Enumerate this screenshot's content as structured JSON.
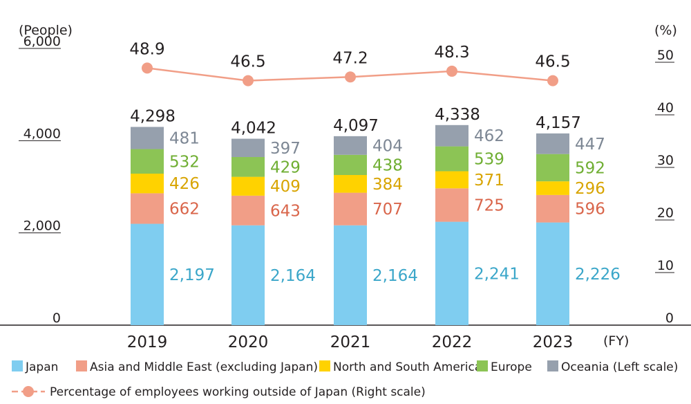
{
  "chart_data": {
    "type": "bar",
    "stacked": true,
    "categories": [
      "2019",
      "2020",
      "2021",
      "2022",
      "2023"
    ],
    "x_unit": "(FY)",
    "y_left": {
      "unit": "(People)",
      "ticks": [
        "0",
        "2,000",
        "4,000",
        "6,000"
      ],
      "range": [
        0,
        6000
      ]
    },
    "y_right": {
      "unit": "(%)",
      "ticks": [
        "0",
        "10",
        "20",
        "30",
        "40",
        "50"
      ],
      "range": [
        0,
        50
      ]
    },
    "series": [
      {
        "name": "Japan",
        "color": "#7fcdf0",
        "label_color": "#3aa6c9",
        "values": [
          2197,
          2164,
          2164,
          2241,
          2226
        ],
        "labels": [
          "2,197",
          "2,164",
          "2,164",
          "2,241",
          "2,226"
        ]
      },
      {
        "name": "Asia and Middle East (excluding Japan)",
        "color": "#f19e87",
        "label_color": "#d9654a",
        "values": [
          662,
          643,
          707,
          725,
          596
        ],
        "labels": [
          "662",
          "643",
          "707",
          "725",
          "596"
        ]
      },
      {
        "name": "North and South America",
        "color": "#ffd200",
        "label_color": "#d8a400",
        "values": [
          426,
          409,
          384,
          371,
          296
        ],
        "labels": [
          "426",
          "409",
          "384",
          "371",
          "296"
        ]
      },
      {
        "name": "Europe",
        "color": "#8cc455",
        "label_color": "#6fae32",
        "values": [
          532,
          429,
          438,
          539,
          592
        ],
        "labels": [
          "532",
          "429",
          "438",
          "539",
          "592"
        ]
      },
      {
        "name": "Oceania (Left scale)",
        "color": "#96a0ad",
        "label_color": "#7d8794",
        "values": [
          481,
          397,
          404,
          462,
          447
        ],
        "labels": [
          "481",
          "397",
          "404",
          "462",
          "447"
        ]
      }
    ],
    "totals": [
      "4,298",
      "4,042",
      "4,097",
      "4,338",
      "4,157"
    ],
    "line": {
      "name": "Percentage of employees working outside of Japan (Right scale)",
      "color": "#f19e87",
      "values": [
        48.9,
        46.5,
        47.2,
        48.3,
        46.5
      ],
      "labels": [
        "48.9",
        "46.5",
        "47.2",
        "48.3",
        "46.5"
      ]
    },
    "legend_position": "bottom"
  }
}
